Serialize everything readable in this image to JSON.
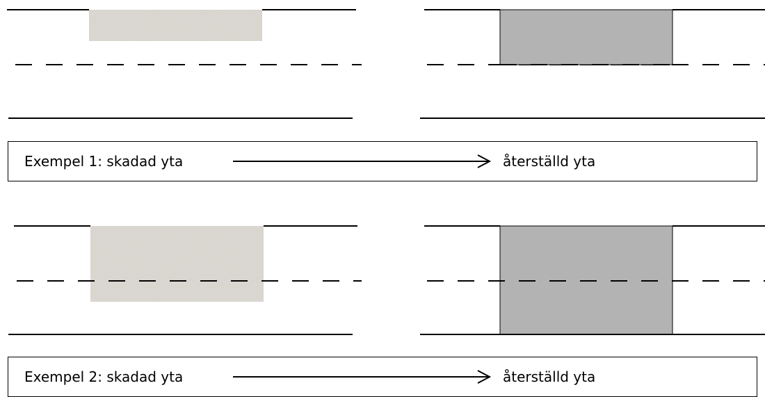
{
  "colors": {
    "line": "#000000",
    "damaged_fill": "#d9d6cf",
    "damaged_speckle": "#b9b5ad",
    "restored_fill": "#b3b3b3"
  },
  "examples": [
    {
      "label": "Exempel 1: skadad yta",
      "result": "återställd yta",
      "patch_extent": "kerb-to-centerline"
    },
    {
      "label": "Exempel 2: skadad yta",
      "result": "återställd yta",
      "patch_extent": "crosses-centerline"
    }
  ],
  "icons": {
    "arrow": "right-arrow-icon"
  }
}
